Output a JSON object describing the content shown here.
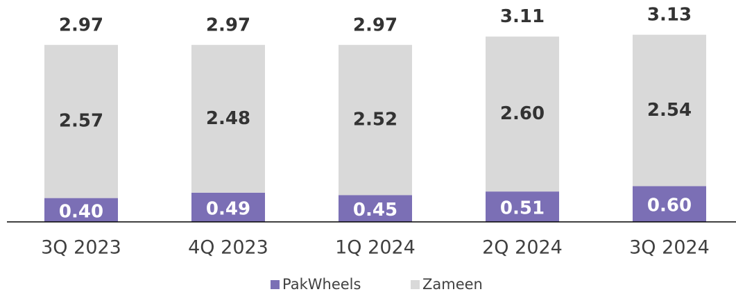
{
  "chart_data": {
    "type": "stacked_bar",
    "categories": [
      "3Q 2023",
      "4Q 2023",
      "1Q 2024",
      "2Q 2024",
      "3Q 2024"
    ],
    "series": [
      {
        "name": "PakWheels",
        "color": "#7b6fb5",
        "values": [
          0.4,
          0.49,
          0.45,
          0.51,
          0.6
        ],
        "value_labels": [
          "0.40",
          "0.49",
          "0.45",
          "0.51",
          "0.60"
        ]
      },
      {
        "name": "Zameen",
        "color": "#d9d9d9",
        "values": [
          2.57,
          2.48,
          2.52,
          2.6,
          2.54
        ],
        "value_labels": [
          "2.57",
          "2.48",
          "2.52",
          "2.60",
          "2.54"
        ]
      }
    ],
    "totals": [
      2.97,
      2.97,
      2.97,
      3.11,
      3.13
    ]
  }
}
